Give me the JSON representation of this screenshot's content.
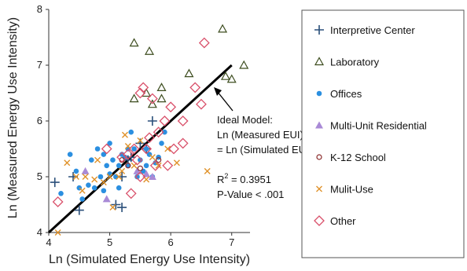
{
  "chart_data": {
    "type": "scatter",
    "xlabel": "Ln (Simulated Energy Use Intensity)",
    "ylabel": "Ln (Measured Energy Use Intensity)",
    "xlim": [
      4,
      7.3
    ],
    "ylim": [
      4,
      8
    ],
    "xticks": [
      "4",
      "5",
      "6",
      "7"
    ],
    "yticks": [
      "4",
      "5",
      "6",
      "7",
      "8"
    ],
    "grid": false,
    "legend_position": "right",
    "ideal_line": {
      "x": [
        4,
        7
      ],
      "y": [
        4,
        7
      ]
    },
    "annotations": {
      "model_lines": [
        "Ideal Model:",
        "Ln (Measured EUI)",
        "= Ln (Simulated EUI)"
      ],
      "r2_label": "R",
      "r2_sup": "2",
      "r2_value": " = 0.3951",
      "pvalue": "P-Value < .001"
    },
    "series": [
      {
        "name": "Interpretive Center",
        "marker": "plus",
        "color": "#2a4f7a",
        "points": [
          [
            4.1,
            4.9
          ],
          [
            4.4,
            5.0
          ],
          [
            4.5,
            4.4
          ],
          [
            5.1,
            4.5
          ],
          [
            5.2,
            4.45
          ],
          [
            5.2,
            5.0
          ],
          [
            5.3,
            5.3
          ],
          [
            5.35,
            5.35
          ],
          [
            5.5,
            5.6
          ],
          [
            5.6,
            5.5
          ],
          [
            5.7,
            6.0
          ]
        ]
      },
      {
        "name": "Laboratory",
        "marker": "triangle-open",
        "color": "#3d4d1f",
        "points": [
          [
            5.4,
            7.4
          ],
          [
            5.65,
            7.25
          ],
          [
            5.4,
            6.4
          ],
          [
            5.6,
            6.5
          ],
          [
            5.7,
            6.3
          ],
          [
            5.85,
            6.6
          ],
          [
            5.85,
            6.4
          ],
          [
            6.3,
            6.85
          ],
          [
            6.85,
            7.65
          ],
          [
            6.9,
            6.8
          ],
          [
            7.0,
            6.75
          ],
          [
            7.2,
            7.0
          ]
        ]
      },
      {
        "name": "Offices",
        "marker": "circle",
        "color": "#2b8fe0",
        "points": [
          [
            4.2,
            4.7
          ],
          [
            4.35,
            5.4
          ],
          [
            4.45,
            5.1
          ],
          [
            4.5,
            4.8
          ],
          [
            4.55,
            4.6
          ],
          [
            4.65,
            4.85
          ],
          [
            4.7,
            5.3
          ],
          [
            4.75,
            4.8
          ],
          [
            4.8,
            5.5
          ],
          [
            4.85,
            5.0
          ],
          [
            4.9,
            4.75
          ],
          [
            4.95,
            5.2
          ],
          [
            5.0,
            5.6
          ],
          [
            5.05,
            5.3
          ],
          [
            5.1,
            5.0
          ],
          [
            5.15,
            5.2
          ],
          [
            5.2,
            5.4
          ],
          [
            5.25,
            5.35
          ],
          [
            5.3,
            5.2
          ],
          [
            5.35,
            5.8
          ],
          [
            5.4,
            5.5
          ],
          [
            5.45,
            5.0
          ],
          [
            5.5,
            5.3
          ],
          [
            5.55,
            5.1
          ],
          [
            5.6,
            5.2
          ],
          [
            5.65,
            5.4
          ],
          [
            5.7,
            5.0
          ],
          [
            5.75,
            5.25
          ],
          [
            5.8,
            5.35
          ],
          [
            5.85,
            5.6
          ],
          [
            5.9,
            5.8
          ],
          [
            5.6,
            5.5
          ],
          [
            5.3,
            5.5
          ],
          [
            5.0,
            5.05
          ],
          [
            4.9,
            5.4
          ],
          [
            5.15,
            4.8
          ]
        ]
      },
      {
        "name": "Multi-Unit Residential",
        "marker": "triangle",
        "color": "#a98ad6",
        "points": [
          [
            4.6,
            5.1
          ],
          [
            4.95,
            4.6
          ],
          [
            5.45,
            5.1
          ],
          [
            5.6,
            5.05
          ],
          [
            5.7,
            5.0
          ]
        ]
      },
      {
        "name": "K-12 School",
        "marker": "circle-open",
        "color": "#8a2a2a",
        "points": [
          [
            5.2,
            5.3
          ],
          [
            5.5,
            5.15
          ],
          [
            5.8,
            5.3
          ],
          [
            5.3,
            5.2
          ]
        ]
      },
      {
        "name": "Mulit-Use",
        "marker": "x",
        "color": "#e0922a",
        "points": [
          [
            4.15,
            4.0
          ],
          [
            4.3,
            5.25
          ],
          [
            4.45,
            5.0
          ],
          [
            4.55,
            4.75
          ],
          [
            4.6,
            5.0
          ],
          [
            4.75,
            4.95
          ],
          [
            4.8,
            5.3
          ],
          [
            4.9,
            4.9
          ],
          [
            5.0,
            5.0
          ],
          [
            5.05,
            4.45
          ],
          [
            5.15,
            5.0
          ],
          [
            5.25,
            5.75
          ],
          [
            5.3,
            5.55
          ],
          [
            5.5,
            5.65
          ],
          [
            5.6,
            4.95
          ],
          [
            5.7,
            5.35
          ],
          [
            5.8,
            5.2
          ],
          [
            5.95,
            5.5
          ],
          [
            6.1,
            5.25
          ],
          [
            6.6,
            5.1
          ],
          [
            5.4,
            5.2
          ],
          [
            5.2,
            5.1
          ]
        ]
      },
      {
        "name": "Other",
        "marker": "diamond-open",
        "color": "#d9506a",
        "points": [
          [
            4.15,
            4.55
          ],
          [
            4.95,
            5.5
          ],
          [
            5.2,
            5.35
          ],
          [
            5.3,
            5.4
          ],
          [
            5.35,
            4.7
          ],
          [
            5.4,
            5.5
          ],
          [
            5.45,
            5.3
          ],
          [
            5.5,
            6.5
          ],
          [
            5.55,
            6.6
          ],
          [
            5.6,
            5.5
          ],
          [
            5.7,
            6.4
          ],
          [
            5.75,
            5.2
          ],
          [
            5.8,
            5.8
          ],
          [
            5.9,
            6.0
          ],
          [
            6.0,
            6.25
          ],
          [
            6.05,
            5.5
          ],
          [
            6.2,
            6.0
          ],
          [
            6.2,
            5.6
          ],
          [
            6.4,
            6.6
          ],
          [
            6.5,
            6.3
          ],
          [
            6.55,
            7.4
          ],
          [
            5.95,
            5.2
          ],
          [
            5.5,
            5.0
          ],
          [
            5.65,
            5.7
          ]
        ]
      }
    ]
  }
}
